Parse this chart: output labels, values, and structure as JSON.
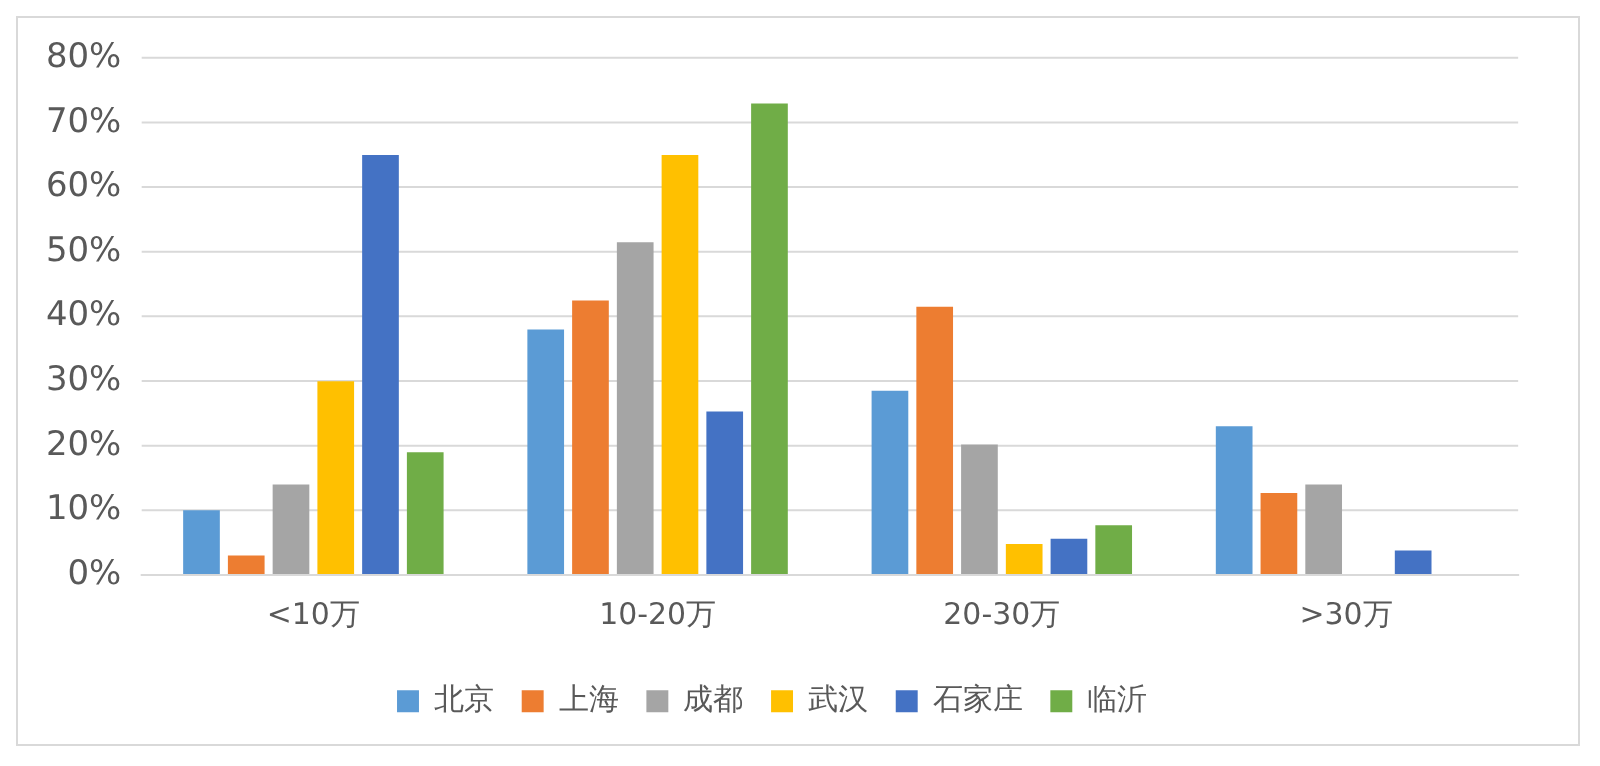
{
  "chart_data": {
    "type": "bar",
    "categories": [
      "<10万",
      "10-20万",
      "20-30万",
      ">30万"
    ],
    "series": [
      {
        "name": "北京",
        "color": "#5b9bd5",
        "values": [
          10,
          38,
          28.5,
          23
        ]
      },
      {
        "name": "上海",
        "color": "#ed7d31",
        "values": [
          3,
          42.5,
          41.5,
          12.7
        ]
      },
      {
        "name": "成都",
        "color": "#a5a5a5",
        "values": [
          14,
          51.5,
          20.2,
          14
        ]
      },
      {
        "name": "武汉",
        "color": "#ffc000",
        "values": [
          30,
          65,
          4.8,
          0
        ]
      },
      {
        "name": "石家庄",
        "color": "#4472c4",
        "values": [
          65,
          25.3,
          5.6,
          3.8
        ]
      },
      {
        "name": "临沂",
        "color": "#70ad47",
        "values": [
          19,
          73,
          7.7,
          0
        ]
      }
    ],
    "ylim": [
      0,
      80
    ],
    "yticks": [
      {
        "value": 0,
        "label": "0%"
      },
      {
        "value": 10,
        "label": "10%"
      },
      {
        "value": 20,
        "label": "20%"
      },
      {
        "value": 30,
        "label": "30%"
      },
      {
        "value": 40,
        "label": "40%"
      },
      {
        "value": 50,
        "label": "50%"
      },
      {
        "value": 60,
        "label": "60%"
      },
      {
        "value": 70,
        "label": "70%"
      },
      {
        "value": 80,
        "label": "80%"
      }
    ],
    "grid": "y",
    "legend": "bottom"
  }
}
